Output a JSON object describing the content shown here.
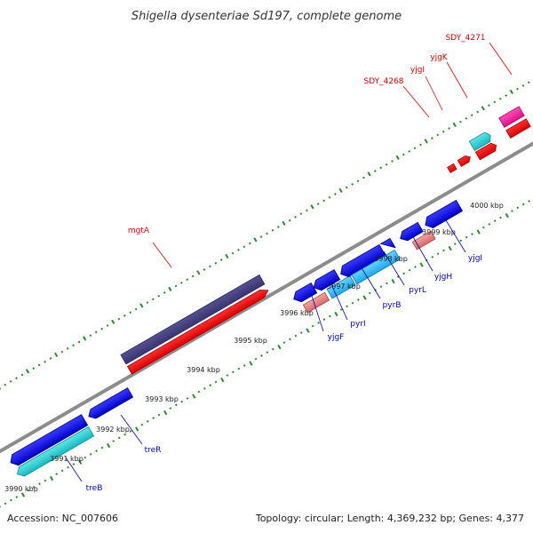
{
  "title": "Shigella dysenteriae Sd197, complete genome",
  "accession": "Accession: NC_007606",
  "summary": "Topology: circular; Length: 4,369,232 bp; Genes: 4,377",
  "colors": {
    "backbone": "#8c8c8c",
    "tick": "#2a8a2a",
    "label_red": "#e00000",
    "label_blue": "#0000cc",
    "leader_red": "#e00000",
    "leader_blue": "#0000cc"
  },
  "scale_labels": [
    "3990 kbp",
    "3991 kbp",
    "3992 kbp",
    "3993 kbp",
    "3994 kbp",
    "3995 kbp",
    "3996 kbp",
    "3997 kbp",
    "3998 kbp",
    "3999 kbp",
    "4000 kbp"
  ],
  "features": [
    {
      "name": "mgtA",
      "strand": "forward",
      "labeled": true
    },
    {
      "name": "SDY_4268",
      "strand": "forward",
      "labeled": true
    },
    {
      "name": "yjgI",
      "strand": "forward",
      "labeled": true
    },
    {
      "name": "yjgK",
      "strand": "forward",
      "labeled": true
    },
    {
      "name": "SDY_4271",
      "strand": "forward",
      "labeled": true
    },
    {
      "name": "treB",
      "strand": "reverse",
      "labeled": true
    },
    {
      "name": "treR",
      "strand": "reverse",
      "labeled": true
    },
    {
      "name": "yjgF",
      "strand": "reverse",
      "labeled": true
    },
    {
      "name": "pyrI",
      "strand": "reverse",
      "labeled": true
    },
    {
      "name": "pyrB",
      "strand": "reverse",
      "labeled": true
    },
    {
      "name": "pyrL",
      "strand": "reverse",
      "labeled": true
    },
    {
      "name": "yjgH",
      "strand": "reverse",
      "labeled": true
    },
    {
      "name": "yjgI",
      "strand": "reverse",
      "labeled": true
    }
  ]
}
